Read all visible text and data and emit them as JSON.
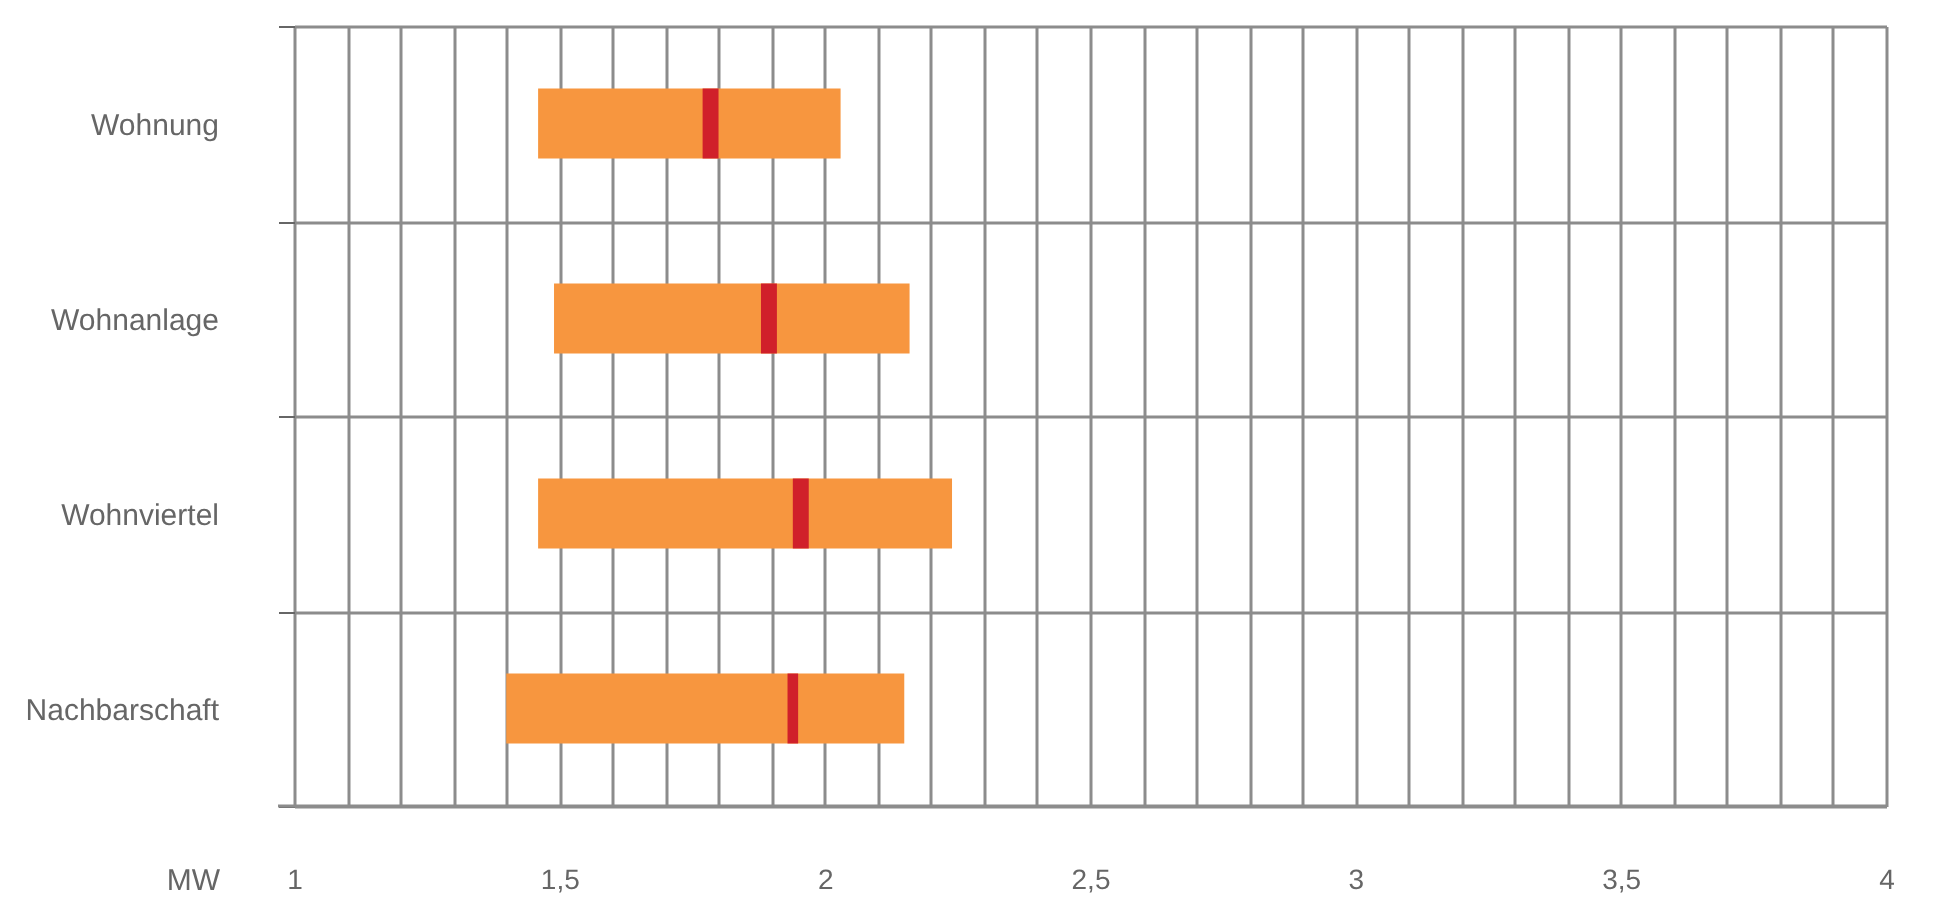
{
  "chart_data": {
    "type": "bar",
    "orientation": "horizontal",
    "xlabel": "MW",
    "categories": [
      "Wohnung",
      "Wohnanlage",
      "Wohnviertel",
      "Nachbarschaft"
    ],
    "series": [
      {
        "color": "#f7963f",
        "base": [
          1.46,
          1.49,
          1.46,
          1.4
        ],
        "values": [
          0.57,
          0.67,
          0.78,
          0.75
        ]
      },
      {
        "color": "#d0202a",
        "base": [
          1.77,
          1.88,
          1.94,
          1.93
        ],
        "values": [
          0.03,
          0.03,
          0.03,
          0.02
        ]
      }
    ],
    "xlim": [
      1,
      4
    ],
    "xticks": [
      1,
      {
        "value": 1.1,
        "label": null
      },
      {
        "value": 1.2,
        "label": null
      },
      {
        "value": 1.3,
        "label": null
      },
      {
        "value": 1.4,
        "label": null
      },
      {
        "value": 1.5,
        "label": "1,5"
      },
      {
        "value": 1.6,
        "label": null
      },
      {
        "value": 1.7,
        "label": null
      },
      {
        "value": 1.8,
        "label": null
      },
      {
        "value": 1.9,
        "label": null
      },
      2,
      {
        "value": 2.1,
        "label": null
      },
      {
        "value": 2.2,
        "label": null
      },
      {
        "value": 2.3,
        "label": null
      },
      {
        "value": 2.4,
        "label": null
      },
      {
        "value": 2.5,
        "label": "2,5"
      },
      {
        "value": 2.6,
        "label": null
      },
      {
        "value": 2.7,
        "label": null
      },
      {
        "value": 2.8,
        "label": null
      },
      {
        "value": 2.9,
        "label": null
      },
      3,
      {
        "value": 3.1,
        "label": null
      },
      {
        "value": 3.2,
        "label": null
      },
      {
        "value": 3.3,
        "label": null
      },
      {
        "value": 3.4,
        "label": null
      },
      {
        "value": 3.5,
        "label": "3,5"
      },
      {
        "value": 3.6,
        "label": null
      },
      {
        "value": 3.7,
        "label": null
      },
      {
        "value": 3.8,
        "label": null
      },
      {
        "value": 3.9,
        "label": null
      },
      4
    ],
    "grid": true
  }
}
